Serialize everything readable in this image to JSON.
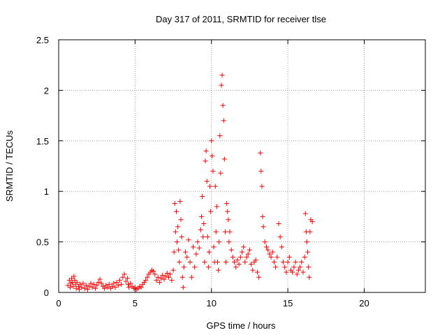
{
  "chart_data": {
    "type": "scatter",
    "title": "Day 317 of 2011, SRMTID for receiver tlse",
    "xlabel": "GPS time / hours",
    "ylabel": "SRMTID / TECUs",
    "xlim": [
      0,
      24
    ],
    "ylim": [
      0,
      2.5
    ],
    "grid": true,
    "marker": "+",
    "color": "#ff0000",
    "x_ticks": [
      0,
      5,
      10,
      15,
      20
    ],
    "x_tick_labels": [
      "0",
      "5",
      "10",
      "15",
      "20"
    ],
    "y_ticks": [
      0,
      0.5,
      1,
      1.5,
      2,
      2.5
    ],
    "y_tick_labels": [
      "0",
      "0.5",
      "1",
      "1.5",
      "2",
      "2.5"
    ],
    "series": [
      {
        "name": "SRMTID",
        "points": [
          [
            0.6,
            0.07
          ],
          [
            0.7,
            0.12
          ],
          [
            0.75,
            0.05
          ],
          [
            0.8,
            0.09
          ],
          [
            0.85,
            0.14
          ],
          [
            0.9,
            0.1
          ],
          [
            0.95,
            0.06
          ],
          [
            1.0,
            0.16
          ],
          [
            1.05,
            0.12
          ],
          [
            1.1,
            0.08
          ],
          [
            1.15,
            0.04
          ],
          [
            1.2,
            0.1
          ],
          [
            1.3,
            0.06
          ],
          [
            1.35,
            0.03
          ],
          [
            1.4,
            0.08
          ],
          [
            1.5,
            0.05
          ],
          [
            1.6,
            0.09
          ],
          [
            1.7,
            0.04
          ],
          [
            1.8,
            0.07
          ],
          [
            1.9,
            0.03
          ],
          [
            2.0,
            0.06
          ],
          [
            2.1,
            0.09
          ],
          [
            2.2,
            0.05
          ],
          [
            2.3,
            0.08
          ],
          [
            2.4,
            0.04
          ],
          [
            2.5,
            0.07
          ],
          [
            2.6,
            0.1
          ],
          [
            2.7,
            0.13
          ],
          [
            2.8,
            0.09
          ],
          [
            2.9,
            0.06
          ],
          [
            3.0,
            0.04
          ],
          [
            3.1,
            0.07
          ],
          [
            3.2,
            0.05
          ],
          [
            3.3,
            0.08
          ],
          [
            3.4,
            0.04
          ],
          [
            3.5,
            0.06
          ],
          [
            3.6,
            0.09
          ],
          [
            3.7,
            0.05
          ],
          [
            3.8,
            0.1
          ],
          [
            3.9,
            0.07
          ],
          [
            4.0,
            0.12
          ],
          [
            4.1,
            0.08
          ],
          [
            4.2,
            0.15
          ],
          [
            4.3,
            0.18
          ],
          [
            4.4,
            0.11
          ],
          [
            4.5,
            0.14
          ],
          [
            4.55,
            0.08
          ],
          [
            4.6,
            0.05
          ],
          [
            4.7,
            0.09
          ],
          [
            4.8,
            0.06
          ],
          [
            4.9,
            0.04
          ],
          [
            5.0,
            0.05
          ],
          [
            5.1,
            0.03
          ],
          [
            5.2,
            0.04
          ],
          [
            5.3,
            0.06
          ],
          [
            5.4,
            0.05
          ],
          [
            5.5,
            0.08
          ],
          [
            5.6,
            0.1
          ],
          [
            5.7,
            0.12
          ],
          [
            5.8,
            0.15
          ],
          [
            5.9,
            0.18
          ],
          [
            6.0,
            0.2
          ],
          [
            6.1,
            0.22
          ],
          [
            6.2,
            0.21
          ],
          [
            6.3,
            0.18
          ],
          [
            6.4,
            0.12
          ],
          [
            6.5,
            0.15
          ],
          [
            6.6,
            0.1
          ],
          [
            6.7,
            0.14
          ],
          [
            6.8,
            0.17
          ],
          [
            6.9,
            0.13
          ],
          [
            7.0,
            0.16
          ],
          [
            7.1,
            0.19
          ],
          [
            7.2,
            0.15
          ],
          [
            7.3,
            0.18
          ],
          [
            7.4,
            0.12
          ],
          [
            7.5,
            0.22
          ],
          [
            7.55,
            0.4
          ],
          [
            7.6,
            0.88
          ],
          [
            7.65,
            0.6
          ],
          [
            7.7,
            0.8
          ],
          [
            7.75,
            0.5
          ],
          [
            7.8,
            0.65
          ],
          [
            7.85,
            0.42
          ],
          [
            7.9,
            0.3
          ],
          [
            7.95,
            0.9
          ],
          [
            8.0,
            0.72
          ],
          [
            8.05,
            0.55
          ],
          [
            8.1,
            0.15
          ],
          [
            8.15,
            0.05
          ],
          [
            8.2,
            0.25
          ],
          [
            8.3,
            0.4
          ],
          [
            8.4,
            0.35
          ],
          [
            8.5,
            0.52
          ],
          [
            8.6,
            0.3
          ],
          [
            8.7,
            0.15
          ],
          [
            8.8,
            0.45
          ],
          [
            8.9,
            0.25
          ],
          [
            9.0,
            0.38
          ],
          [
            9.1,
            0.5
          ],
          [
            9.2,
            0.44
          ],
          [
            9.3,
            0.62
          ],
          [
            9.35,
            0.75
          ],
          [
            9.4,
            0.95
          ],
          [
            9.45,
            0.55
          ],
          [
            9.5,
            0.68
          ],
          [
            9.55,
            0.3
          ],
          [
            9.6,
            1.3
          ],
          [
            9.65,
            1.4
          ],
          [
            9.7,
            1.1
          ],
          [
            9.75,
            0.55
          ],
          [
            9.8,
            0.25
          ],
          [
            9.85,
            0.4
          ],
          [
            9.9,
            1.05
          ],
          [
            9.95,
            0.8
          ],
          [
            10.0,
            1.5
          ],
          [
            10.05,
            1.35
          ],
          [
            10.1,
            1.2
          ],
          [
            10.15,
            0.45
          ],
          [
            10.2,
            0.3
          ],
          [
            10.25,
            1.05
          ],
          [
            10.3,
            0.6
          ],
          [
            10.35,
            0.85
          ],
          [
            10.4,
            0.3
          ],
          [
            10.45,
            0.22
          ],
          [
            10.5,
            0.5
          ],
          [
            10.55,
            1.55
          ],
          [
            10.6,
            1.18
          ],
          [
            10.65,
            2.05
          ],
          [
            10.7,
            2.15
          ],
          [
            10.75,
            1.85
          ],
          [
            10.8,
            1.7
          ],
          [
            10.85,
            1.32
          ],
          [
            10.9,
            0.6
          ],
          [
            10.95,
            0.3
          ],
          [
            11.0,
            0.88
          ],
          [
            11.05,
            0.8
          ],
          [
            11.1,
            0.72
          ],
          [
            11.15,
            0.5
          ],
          [
            11.2,
            0.6
          ],
          [
            11.3,
            0.42
          ],
          [
            11.4,
            0.35
          ],
          [
            11.5,
            0.3
          ],
          [
            11.6,
            0.25
          ],
          [
            11.7,
            0.32
          ],
          [
            11.8,
            0.28
          ],
          [
            11.9,
            0.35
          ],
          [
            12.0,
            0.4
          ],
          [
            12.1,
            0.45
          ],
          [
            12.2,
            0.3
          ],
          [
            12.3,
            0.35
          ],
          [
            12.4,
            0.38
          ],
          [
            12.5,
            0.42
          ],
          [
            12.6,
            0.28
          ],
          [
            12.7,
            0.22
          ],
          [
            12.8,
            0.3
          ],
          [
            12.9,
            0.32
          ],
          [
            13.0,
            0.2
          ],
          [
            13.1,
            0.15
          ],
          [
            13.2,
            1.38
          ],
          [
            13.25,
            1.2
          ],
          [
            13.3,
            1.05
          ],
          [
            13.35,
            0.75
          ],
          [
            13.4,
            0.65
          ],
          [
            13.5,
            0.5
          ],
          [
            13.6,
            0.45
          ],
          [
            13.7,
            0.42
          ],
          [
            13.8,
            0.38
          ],
          [
            13.9,
            0.35
          ],
          [
            14.0,
            0.4
          ],
          [
            14.1,
            0.3
          ],
          [
            14.2,
            0.25
          ],
          [
            14.3,
            0.35
          ],
          [
            14.4,
            0.68
          ],
          [
            14.5,
            0.55
          ],
          [
            14.6,
            0.45
          ],
          [
            14.7,
            0.3
          ],
          [
            14.8,
            0.25
          ],
          [
            14.9,
            0.2
          ],
          [
            15.0,
            0.3
          ],
          [
            15.1,
            0.35
          ],
          [
            15.2,
            0.22
          ],
          [
            15.3,
            0.2
          ],
          [
            15.4,
            0.25
          ],
          [
            15.5,
            0.3
          ],
          [
            15.6,
            0.18
          ],
          [
            15.7,
            0.22
          ],
          [
            15.8,
            0.25
          ],
          [
            15.9,
            0.3
          ],
          [
            16.0,
            0.2
          ],
          [
            16.1,
            0.35
          ],
          [
            16.15,
            0.78
          ],
          [
            16.2,
            0.6
          ],
          [
            16.25,
            0.5
          ],
          [
            16.3,
            0.4
          ],
          [
            16.35,
            0.25
          ],
          [
            16.4,
            0.15
          ],
          [
            16.45,
            0.6
          ],
          [
            16.5,
            0.72
          ],
          [
            16.6,
            0.7
          ]
        ]
      }
    ]
  }
}
